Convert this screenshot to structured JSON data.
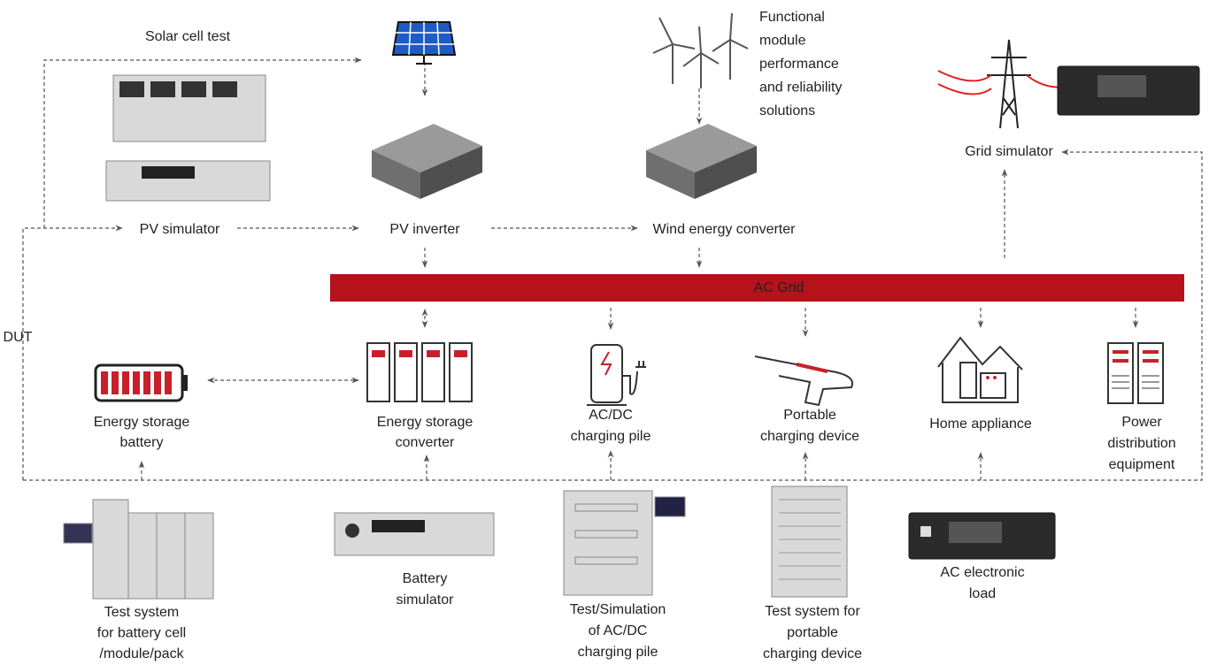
{
  "labels": [
    {
      "lines": [
        "Solar cell test"
      ]
    },
    {
      "lines": [
        "Functional",
        "module",
        "performance",
        "and reliability",
        "solutions"
      ]
    },
    {
      "lines": [
        "Grid simulator"
      ]
    },
    {
      "lines": [
        "PV simulator"
      ]
    },
    {
      "lines": [
        "PV inverter"
      ]
    },
    {
      "lines": [
        "Wind energy converter"
      ]
    },
    {
      "lines": [
        "AC Grid"
      ]
    },
    {
      "lines": [
        "DUT"
      ]
    },
    {
      "lines": [
        "Energy storage",
        "battery"
      ]
    },
    {
      "lines": [
        "Energy storage",
        "converter"
      ]
    },
    {
      "lines": [
        "AC/DC",
        "charging pile"
      ]
    },
    {
      "lines": [
        "Portable",
        "charging device"
      ]
    },
    {
      "lines": [
        "Home appliance"
      ]
    },
    {
      "lines": [
        "Power",
        "distribution",
        "equipment"
      ]
    },
    {
      "lines": [
        "Test system",
        "for battery cell",
        "/module/pack"
      ]
    },
    {
      "lines": [
        "Battery",
        "simulator"
      ]
    },
    {
      "lines": [
        "Test/Simulation",
        "of AC/DC",
        "charging pile"
      ]
    },
    {
      "lines": [
        "Test system for",
        "portable",
        "charging device"
      ]
    },
    {
      "lines": [
        "AC electronic",
        "load"
      ]
    }
  ]
}
